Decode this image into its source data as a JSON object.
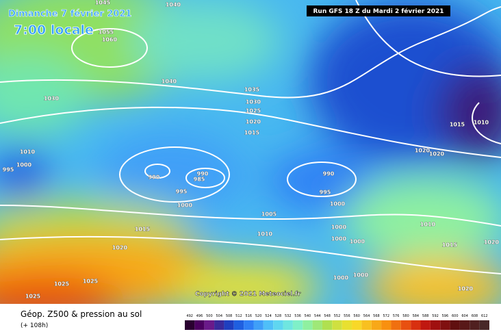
{
  "header": {
    "date": "Dimanche 7 février 2021",
    "time": "7:00 locale",
    "run": "Run GFS 18 Z du Mardi 2 février 2021"
  },
  "copyright": "Copyright © 2021 Meteociel.fr",
  "footer": {
    "title": "Géop. Z500 & pression au sol",
    "lead": "(+ 108h)"
  },
  "legend": {
    "values": [
      492,
      496,
      500,
      504,
      508,
      512,
      516,
      520,
      524,
      528,
      532,
      536,
      540,
      544,
      548,
      552,
      556,
      560,
      564,
      568,
      572,
      576,
      580,
      584,
      588,
      592,
      596,
      600,
      604,
      608,
      612
    ],
    "colors": [
      "#2a0030",
      "#4b0060",
      "#6a1a8a",
      "#3a2a9a",
      "#1f3fbf",
      "#1f5fe0",
      "#2f7ff5",
      "#3f9ff8",
      "#4fbff8",
      "#5fd6f0",
      "#6fe6e0",
      "#7ff0c8",
      "#8ff0a0",
      "#9fe878",
      "#b0e050",
      "#cfe040",
      "#e8e030",
      "#f8d828",
      "#f8c020",
      "#f8a818",
      "#f89010",
      "#f07010",
      "#e85010",
      "#d83010",
      "#c01810",
      "#a01010",
      "#801010",
      "#601010",
      "#581818",
      "#502020",
      "#482828"
    ]
  },
  "isobars": [
    "1045",
    "1040",
    "1055",
    "1060",
    "1030",
    "1040",
    "1035",
    "1030",
    "1025",
    "1020",
    "1015",
    "1015",
    "1010",
    "1020",
    "1020",
    "1010",
    "1000",
    "995",
    "990",
    "990",
    "985",
    "995",
    "1000",
    "990",
    "995",
    "1000",
    "1005",
    "1010",
    "1015",
    "1020",
    "1000",
    "1000",
    "1000",
    "1010",
    "1015",
    "1020",
    "1025",
    "1025",
    "1025",
    "1000",
    "1000",
    "1020"
  ]
}
